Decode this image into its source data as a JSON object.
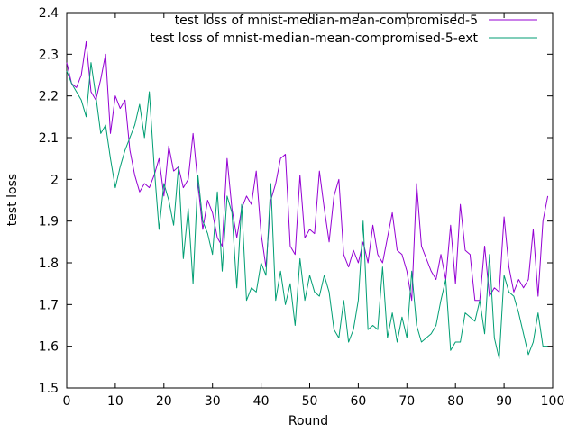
{
  "chart_data": {
    "type": "line",
    "xlabel": "Round",
    "ylabel": "test loss",
    "xlim": [
      0,
      100
    ],
    "ylim": [
      1.5,
      2.4
    ],
    "x_ticks": [
      "0",
      "10",
      "20",
      "30",
      "40",
      "50",
      "60",
      "70",
      "80",
      "90",
      "100"
    ],
    "y_ticks": [
      "1.5",
      "1.6",
      "1.7",
      "1.8",
      "1.9",
      "2",
      "2.1",
      "2.2",
      "2.3",
      "2.4"
    ],
    "grid": false,
    "legend_position": "top-right",
    "series": [
      {
        "name": "test loss of mnist-median-mean-compromised-5",
        "color": "#9400d3",
        "x": [
          0,
          1,
          2,
          3,
          4,
          5,
          6,
          7,
          8,
          9,
          10,
          11,
          12,
          13,
          14,
          15,
          16,
          17,
          18,
          19,
          20,
          21,
          22,
          23,
          24,
          25,
          26,
          27,
          28,
          29,
          30,
          31,
          32,
          33,
          34,
          35,
          36,
          37,
          38,
          39,
          40,
          41,
          42,
          43,
          44,
          45,
          46,
          47,
          48,
          49,
          50,
          51,
          52,
          53,
          54,
          55,
          56,
          57,
          58,
          59,
          60,
          61,
          62,
          63,
          64,
          65,
          66,
          67,
          68,
          69,
          70,
          71,
          72,
          73,
          74,
          75,
          76,
          77,
          78,
          79,
          80,
          81,
          82,
          83,
          84,
          85,
          86,
          87,
          88,
          89,
          90,
          91,
          92,
          93,
          94,
          95,
          96,
          97,
          98,
          99
        ],
        "values": [
          2.28,
          2.23,
          2.22,
          2.25,
          2.33,
          2.21,
          2.19,
          2.24,
          2.3,
          2.11,
          2.2,
          2.17,
          2.19,
          2.07,
          2.01,
          1.97,
          1.99,
          1.98,
          2.01,
          2.05,
          1.96,
          2.08,
          2.02,
          2.03,
          1.98,
          2.0,
          2.11,
          1.99,
          1.88,
          1.95,
          1.92,
          1.86,
          1.84,
          2.05,
          1.93,
          1.86,
          1.93,
          1.96,
          1.94,
          2.02,
          1.87,
          1.79,
          1.95,
          1.99,
          2.05,
          2.06,
          1.84,
          1.82,
          2.01,
          1.86,
          1.88,
          1.87,
          2.02,
          1.93,
          1.85,
          1.96,
          2.0,
          1.82,
          1.79,
          1.83,
          1.8,
          1.85,
          1.8,
          1.89,
          1.82,
          1.8,
          1.86,
          1.92,
          1.83,
          1.82,
          1.78,
          1.71,
          1.99,
          1.84,
          1.81,
          1.78,
          1.76,
          1.82,
          1.76,
          1.89,
          1.75,
          1.94,
          1.83,
          1.82,
          1.71,
          1.71,
          1.84,
          1.72,
          1.74,
          1.73,
          1.91,
          1.79,
          1.73,
          1.76,
          1.74,
          1.76,
          1.88,
          1.72,
          1.9,
          1.96
        ]
      },
      {
        "name": "test loss of mnist-median-mean-compromised-5-ext",
        "color": "#009e73",
        "x": [
          0,
          1,
          2,
          3,
          4,
          5,
          6,
          7,
          8,
          9,
          10,
          11,
          12,
          13,
          14,
          15,
          16,
          17,
          18,
          19,
          20,
          21,
          22,
          23,
          24,
          25,
          26,
          27,
          28,
          29,
          30,
          31,
          32,
          33,
          34,
          35,
          36,
          37,
          38,
          39,
          40,
          41,
          42,
          43,
          44,
          45,
          46,
          47,
          48,
          49,
          50,
          51,
          52,
          53,
          54,
          55,
          56,
          57,
          58,
          59,
          60,
          61,
          62,
          63,
          64,
          65,
          66,
          67,
          68,
          69,
          70,
          71,
          72,
          73,
          74,
          75,
          76,
          77,
          78,
          79,
          80,
          81,
          82,
          83,
          84,
          85,
          86,
          87,
          88,
          89,
          90,
          91,
          92,
          93,
          94,
          95,
          96,
          97,
          98,
          99
        ],
        "values": [
          2.26,
          2.23,
          2.21,
          2.19,
          2.15,
          2.28,
          2.2,
          2.11,
          2.13,
          2.05,
          1.98,
          2.03,
          2.07,
          2.1,
          2.13,
          2.18,
          2.1,
          2.21,
          2.03,
          1.88,
          1.99,
          1.95,
          1.89,
          2.03,
          1.81,
          1.93,
          1.75,
          2.01,
          1.9,
          1.87,
          1.82,
          1.97,
          1.78,
          1.96,
          1.92,
          1.74,
          1.94,
          1.71,
          1.74,
          1.73,
          1.8,
          1.77,
          1.99,
          1.71,
          1.78,
          1.7,
          1.75,
          1.65,
          1.81,
          1.71,
          1.77,
          1.73,
          1.72,
          1.77,
          1.73,
          1.64,
          1.62,
          1.71,
          1.61,
          1.64,
          1.71,
          1.9,
          1.64,
          1.65,
          1.64,
          1.79,
          1.62,
          1.68,
          1.61,
          1.67,
          1.62,
          1.78,
          1.65,
          1.61,
          1.62,
          1.63,
          1.65,
          1.71,
          1.76,
          1.59,
          1.61,
          1.61,
          1.68,
          1.67,
          1.66,
          1.71,
          1.63,
          1.82,
          1.62,
          1.57,
          1.77,
          1.73,
          1.72,
          1.68,
          1.63,
          1.58,
          1.61,
          1.68,
          1.6,
          1.6
        ]
      }
    ]
  }
}
